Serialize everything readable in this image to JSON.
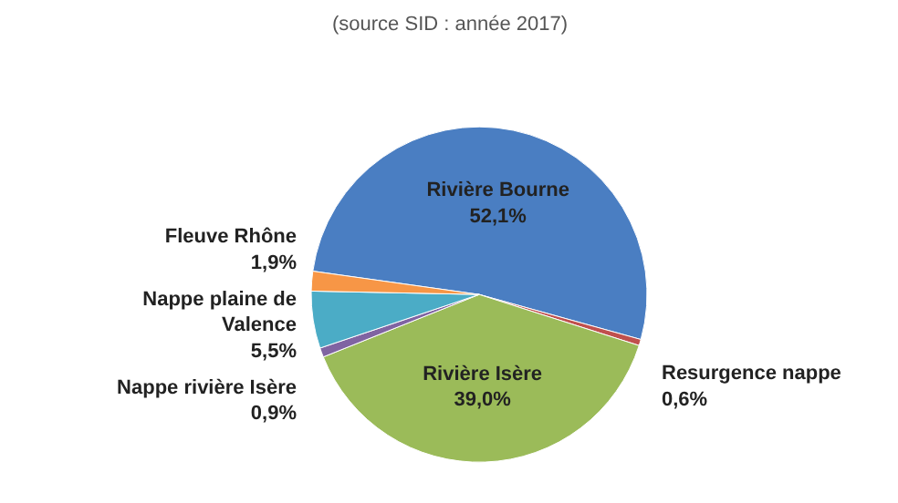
{
  "chart_data": {
    "type": "pie",
    "title": "(source SID : année 2017)",
    "categories": [
      "Rivière Bourne",
      "Resurgence nappe",
      "Rivière Isère",
      "Nappe rivière Isère",
      "Nappe plaine de Valence",
      "Fleuve Rhône"
    ],
    "values": [
      52.1,
      0.6,
      39.0,
      0.9,
      5.5,
      1.9
    ],
    "colors": [
      "#4a7ec2",
      "#c0504d",
      "#9bbb59",
      "#8064a2",
      "#4bacc6",
      "#f79646"
    ],
    "value_labels": [
      "52,1%",
      "0,6%",
      "39,0%",
      "0,9%",
      "5,5%",
      "1,9%"
    ]
  }
}
